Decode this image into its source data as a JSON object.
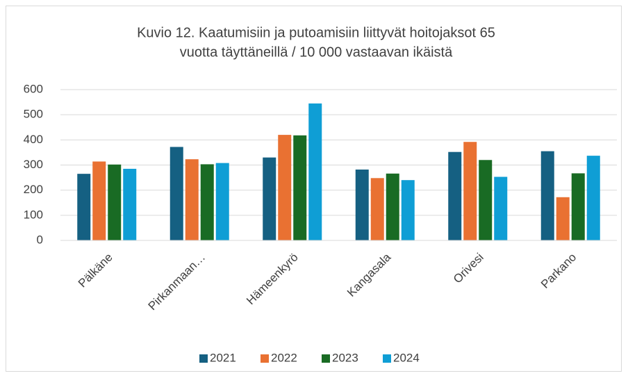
{
  "chart_data": {
    "type": "bar",
    "title": [
      "Kuvio 12. Kaatumisiin ja putoamisiin liittyvät hoitojaksot 65",
      "vuotta täyttäneillä / 10 000 vastaavan ikäistä"
    ],
    "categories": [
      "Pälkäne",
      "Pirkanmaan…",
      "Hämeenkyrö",
      "Kangasala",
      "Orivesi",
      "Parkano"
    ],
    "series": [
      {
        "name": "2021",
        "color": "#156082",
        "values": [
          265,
          372,
          330,
          282,
          352,
          355
        ]
      },
      {
        "name": "2022",
        "color": "#e97132",
        "values": [
          314,
          323,
          420,
          248,
          392,
          172
        ]
      },
      {
        "name": "2023",
        "color": "#196b24",
        "values": [
          302,
          303,
          418,
          266,
          320,
          267
        ]
      },
      {
        "name": "2024",
        "color": "#0f9ed5",
        "values": [
          285,
          308,
          545,
          240,
          253,
          337
        ]
      }
    ],
    "ylim": [
      0,
      600
    ],
    "yticks": [
      0,
      100,
      200,
      300,
      400,
      500,
      600
    ],
    "grid": true,
    "legend": "bottom"
  }
}
